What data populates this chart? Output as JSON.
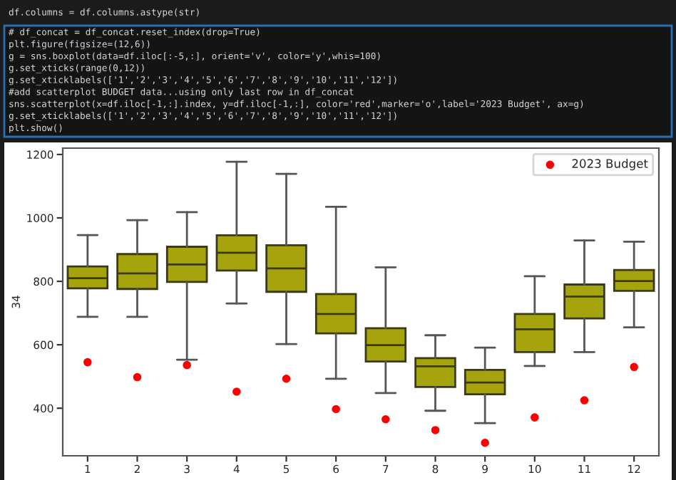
{
  "chart_data": {
    "type": "box",
    "ylabel": "34",
    "color": "#a6a40c",
    "categories": [
      "1",
      "2",
      "3",
      "4",
      "5",
      "6",
      "7",
      "8",
      "9",
      "10",
      "11",
      "12"
    ],
    "boxes": [
      {
        "low": 688,
        "q1": 778,
        "median": 810,
        "q3": 847,
        "high": 946
      },
      {
        "low": 688,
        "q1": 776,
        "median": 825,
        "q3": 886,
        "high": 993
      },
      {
        "low": 553,
        "q1": 798,
        "median": 853,
        "q3": 909,
        "high": 1018
      },
      {
        "low": 730,
        "q1": 834,
        "median": 890,
        "q3": 945,
        "high": 1177
      },
      {
        "low": 602,
        "q1": 767,
        "median": 841,
        "q3": 914,
        "high": 1139
      },
      {
        "low": 493,
        "q1": 636,
        "median": 697,
        "q3": 760,
        "high": 1035
      },
      {
        "low": 448,
        "q1": 547,
        "median": 599,
        "q3": 652,
        "high": 844
      },
      {
        "low": 392,
        "q1": 467,
        "median": 532,
        "q3": 558,
        "high": 630
      },
      {
        "low": 353,
        "q1": 444,
        "median": 481,
        "q3": 521,
        "high": 591
      },
      {
        "low": 533,
        "q1": 577,
        "median": 649,
        "q3": 697,
        "high": 816
      },
      {
        "low": 577,
        "q1": 683,
        "median": 752,
        "q3": 790,
        "high": 929
      },
      {
        "low": 655,
        "q1": 770,
        "median": 801,
        "q3": 836,
        "high": 925
      }
    ],
    "series": [
      {
        "name": "2023 Budget",
        "type": "scatter",
        "color": "#ff0000",
        "marker": "circle",
        "x": [
          "1",
          "2",
          "3",
          "4",
          "5",
          "6",
          "7",
          "8",
          "9",
          "10",
          "11",
          "12"
        ],
        "values": [
          545,
          498,
          536,
          452,
          493,
          397,
          365,
          331,
          291,
          371,
          425,
          530
        ]
      }
    ],
    "ylim": [
      250,
      1220
    ],
    "yticks": [
      400,
      600,
      800,
      1000,
      1200
    ],
    "grid": false,
    "legend": "top right",
    "annotations": [
      "df.columns = df.columns.astype(str)",
      "# df_concat = df_concat.reset_index(drop=True)",
      "plt.figure(figsize=(12,6))",
      "g = sns.boxplot(data=df.iloc[:-5,:], orient='v', color='y',whis=100)",
      "g.set_xticks(range(0,12))",
      "g.set_xticklabels(['1','2','3','4','5','6','7','8','9','10','11','12'])",
      "#add scatterplot BUDGET data...using only last row in df_concat",
      "sns.scatterplot(x=df.iloc[-1,:].index, y=df.iloc[-1,:], color='red',marker='o',label='2023 Budget', ax=g)",
      "g.set_xticklabels(['1','2','3','4','5','6','7','8','9','10','11','12'])",
      "plt.show()"
    ]
  }
}
